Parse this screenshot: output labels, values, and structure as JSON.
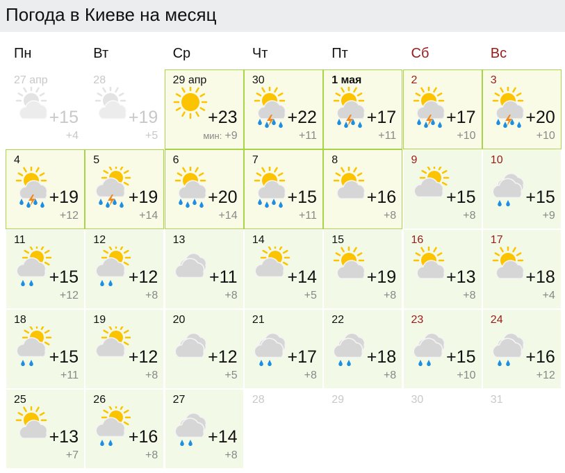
{
  "title": "Погода в Киеве на месяц",
  "weekdays": [
    {
      "label": "Пн",
      "weekend": false
    },
    {
      "label": "Вт",
      "weekend": false
    },
    {
      "label": "Ср",
      "weekend": false
    },
    {
      "label": "Чт",
      "weekend": false
    },
    {
      "label": "Пт",
      "weekend": false
    },
    {
      "label": "Сб",
      "weekend": true
    },
    {
      "label": "Вс",
      "weekend": true
    }
  ],
  "min_label": "мин:",
  "colors": {
    "highlight_border": "#a8d44a",
    "highlight_bg": "#fafbe6",
    "cell_bg": "#f2f9e6",
    "weekend": "#9a1a1a",
    "sun": "#fcc400",
    "rain": "#1e8fe0",
    "bolt": "#f08a1e"
  },
  "days": [
    {
      "date": "27 апр",
      "hi": "+15",
      "lo": "+4",
      "icon": "suncloud",
      "state": "past"
    },
    {
      "date": "28",
      "hi": "+19",
      "lo": "+5",
      "icon": "suncloud",
      "state": "past"
    },
    {
      "date": "29 апр",
      "hi": "+23",
      "lo": "+9",
      "icon": "sun",
      "state": "hl",
      "min": true
    },
    {
      "date": "30",
      "hi": "+22",
      "lo": "+11",
      "icon": "suncloud-storm",
      "state": "hl"
    },
    {
      "date": "1 мая",
      "hi": "+17",
      "lo": "+11",
      "icon": "suncloud-storm",
      "state": "hl",
      "bold": true
    },
    {
      "date": "2",
      "hi": "+17",
      "lo": "+10",
      "icon": "suncloud-storm",
      "state": "hl"
    },
    {
      "date": "3",
      "hi": "+20",
      "lo": "+10",
      "icon": "suncloud-storm",
      "state": "hl"
    },
    {
      "date": "4",
      "hi": "+19",
      "lo": "+12",
      "icon": "suncloud-storm",
      "state": "hl"
    },
    {
      "date": "5",
      "hi": "+19",
      "lo": "+14",
      "icon": "cloudsun-storm",
      "state": "hl"
    },
    {
      "date": "6",
      "hi": "+20",
      "lo": "+14",
      "icon": "suncloud-rain",
      "state": "hl"
    },
    {
      "date": "7",
      "hi": "+15",
      "lo": "+11",
      "icon": "suncloud-rain",
      "state": "hl"
    },
    {
      "date": "8",
      "hi": "+16",
      "lo": "+8",
      "icon": "suncloud",
      "state": "hl"
    },
    {
      "date": "9",
      "hi": "+15",
      "lo": "+8",
      "icon": "cloudsun",
      "state": "normal"
    },
    {
      "date": "10",
      "hi": "+15",
      "lo": "+9",
      "icon": "clouds-rain",
      "state": "normal"
    },
    {
      "date": "11",
      "hi": "+15",
      "lo": "+12",
      "icon": "cloudsun-rain",
      "state": "normal"
    },
    {
      "date": "12",
      "hi": "+12",
      "lo": "+8",
      "icon": "cloudsun-rain",
      "state": "normal"
    },
    {
      "date": "13",
      "hi": "+11",
      "lo": "+8",
      "icon": "clouds",
      "state": "normal"
    },
    {
      "date": "14",
      "hi": "+14",
      "lo": "+5",
      "icon": "cloudsun",
      "state": "normal"
    },
    {
      "date": "15",
      "hi": "+19",
      "lo": "+8",
      "icon": "suncloud",
      "state": "normal"
    },
    {
      "date": "16",
      "hi": "+13",
      "lo": "+8",
      "icon": "suncloud",
      "state": "normal"
    },
    {
      "date": "17",
      "hi": "+18",
      "lo": "+4",
      "icon": "suncloud",
      "state": "normal"
    },
    {
      "date": "18",
      "hi": "+15",
      "lo": "+11",
      "icon": "cloudsun-rain",
      "state": "normal"
    },
    {
      "date": "19",
      "hi": "+12",
      "lo": "+8",
      "icon": "cloudsun",
      "state": "normal"
    },
    {
      "date": "20",
      "hi": "+12",
      "lo": "+5",
      "icon": "clouds",
      "state": "normal"
    },
    {
      "date": "21",
      "hi": "+17",
      "lo": "+8",
      "icon": "clouds-rain",
      "state": "normal"
    },
    {
      "date": "22",
      "hi": "+18",
      "lo": "+8",
      "icon": "clouds-rain",
      "state": "normal"
    },
    {
      "date": "23",
      "hi": "+15",
      "lo": "+10",
      "icon": "clouds-rain",
      "state": "normal"
    },
    {
      "date": "24",
      "hi": "+16",
      "lo": "+12",
      "icon": "clouds-rain",
      "state": "normal"
    },
    {
      "date": "25",
      "hi": "+13",
      "lo": "+7",
      "icon": "suncloud",
      "state": "normal"
    },
    {
      "date": "26",
      "hi": "+16",
      "lo": "+8",
      "icon": "cloudsun-rain",
      "state": "normal"
    },
    {
      "date": "27",
      "hi": "+14",
      "lo": "+8",
      "icon": "clouds-rain",
      "state": "normal"
    },
    {
      "date": "28",
      "state": "empty"
    },
    {
      "date": "29",
      "state": "empty"
    },
    {
      "date": "30",
      "state": "empty"
    },
    {
      "date": "31",
      "state": "empty"
    }
  ]
}
